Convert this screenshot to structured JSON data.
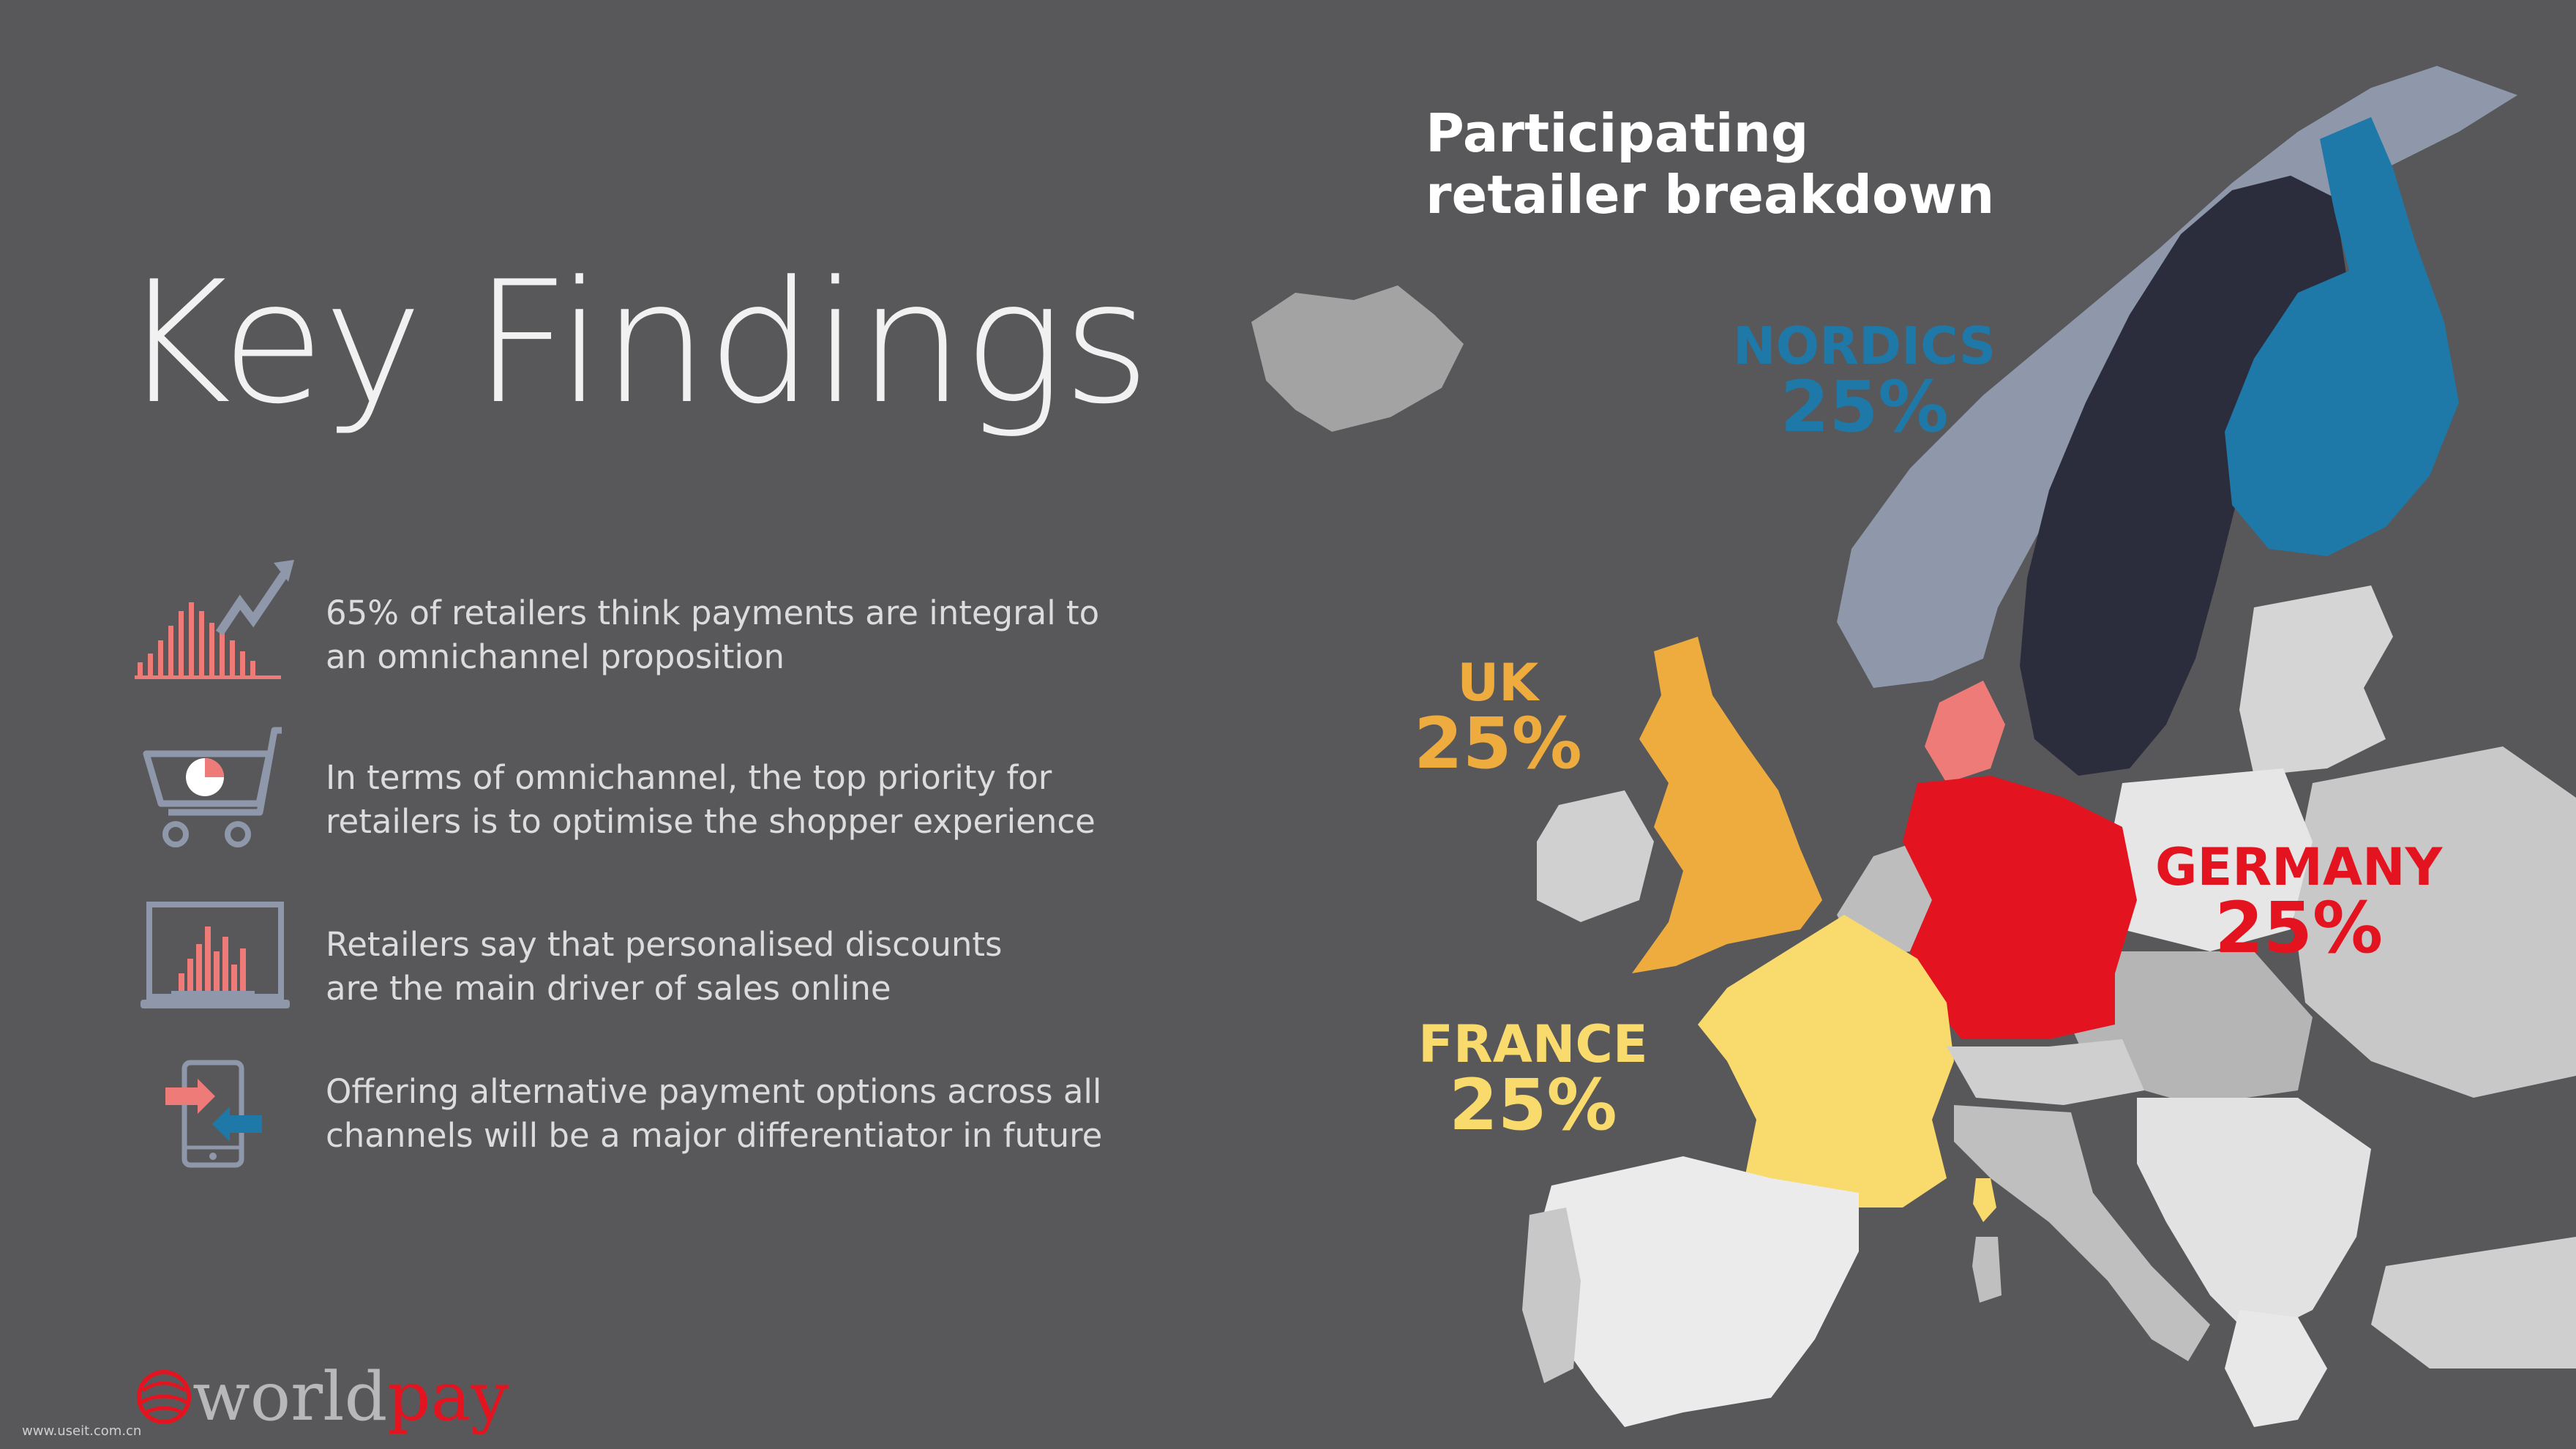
{
  "page": {
    "title": "Key Findings",
    "map_title_line1": "Participating",
    "map_title_line2": "retailer breakdown"
  },
  "findings": [
    {
      "icon": "rising-bar-chart-icon",
      "line1": "65% of retailers think payments are integral to",
      "line2": "an omnichannel proposition"
    },
    {
      "icon": "shopping-cart-icon",
      "line1": "In terms of omnichannel, the top priority for",
      "line2": "retailers is to optimise the shopper experience"
    },
    {
      "icon": "laptop-chart-icon",
      "line1": "Retailers say that personalised discounts",
      "line2": "are the main driver of sales online"
    },
    {
      "icon": "mobile-transfer-icon",
      "line1": "Offering alternative payment options across all",
      "line2": "channels will be a major differentiator in future"
    }
  ],
  "regions": {
    "nordics": {
      "name": "NORDICS",
      "share": "25%",
      "color": "#1e78a8"
    },
    "uk": {
      "name": "UK",
      "share": "25%",
      "color": "#eeac3f"
    },
    "germany": {
      "name": "GERMANY",
      "share": "25%",
      "color": "#e3141f"
    },
    "france": {
      "name": "FRANCE",
      "share": "25%",
      "color": "#f8da6d"
    }
  },
  "colors": {
    "background": "#58585a",
    "norway": "#8e98aa",
    "sweden": "#2b2d3c",
    "finland": "#1e78a8",
    "denmark": "#ef7b78",
    "other_countries": "#d8d8d8",
    "accent_red": "#e3141f"
  },
  "logo": {
    "part1": "world",
    "part2": "pay"
  },
  "watermark": "www.useit.com.cn"
}
